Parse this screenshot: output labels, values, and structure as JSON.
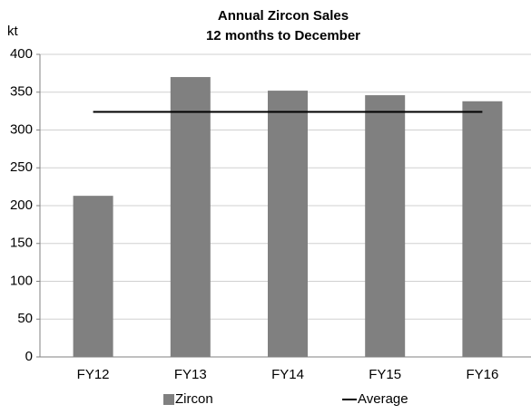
{
  "chart_data": {
    "type": "bar",
    "title": [
      "Annual Zircon Sales",
      "12 months to December"
    ],
    "y_label": "kt",
    "categories": [
      "FY12",
      "FY13",
      "FY14",
      "FY15",
      "FY16"
    ],
    "series": [
      {
        "name": "Zircon",
        "type": "bar",
        "color": "#808080",
        "values": [
          213,
          370,
          352,
          346,
          338
        ]
      },
      {
        "name": "Average",
        "type": "line",
        "color": "#000000",
        "values": [
          324,
          324,
          324,
          324,
          324
        ]
      }
    ],
    "ylim": [
      0,
      400
    ],
    "yticks": [
      0,
      50,
      100,
      150,
      200,
      250,
      300,
      350,
      400
    ],
    "grid": true,
    "legend": "bottom"
  }
}
